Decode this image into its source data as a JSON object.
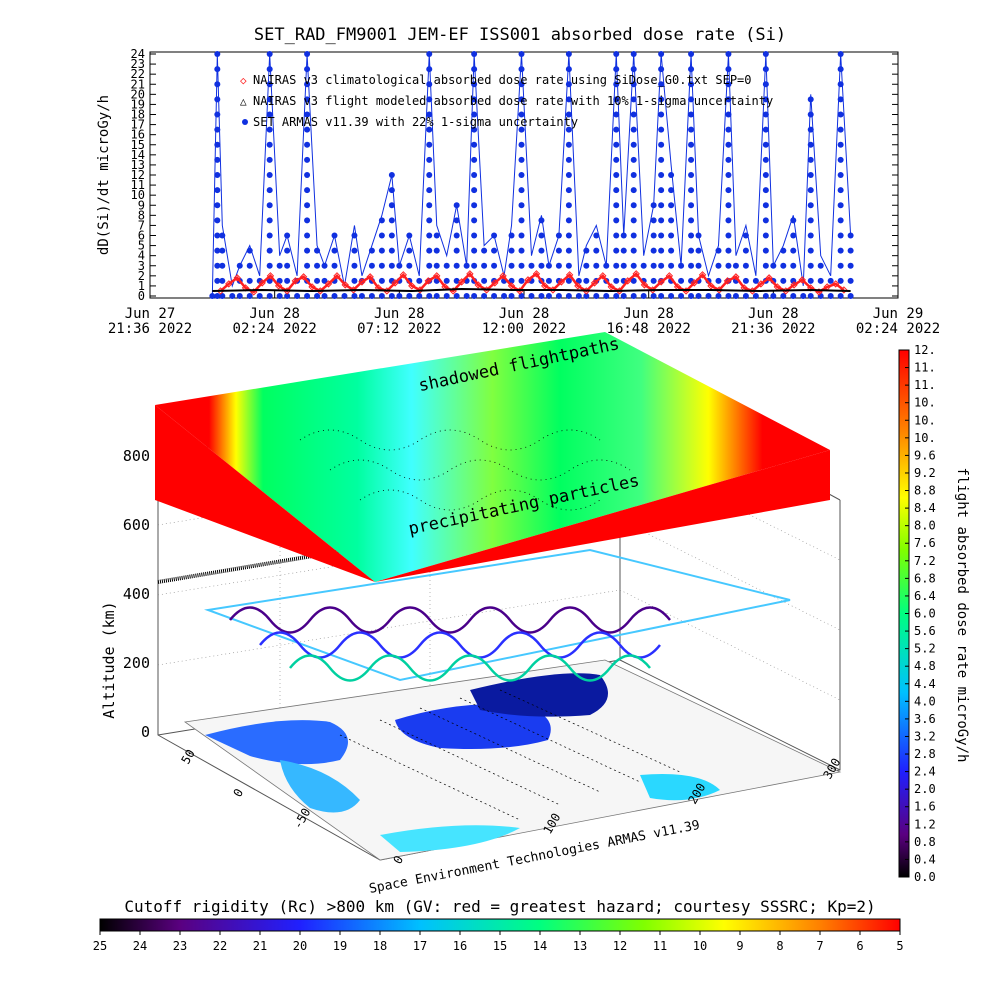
{
  "chart_data": [
    {
      "type": "line",
      "title": "SET_RAD_FM9001  JEM-EF ISS001 absorbed dose rate (Si)",
      "ylabel": "dD(Si)/dt microGy/h",
      "ylim": [
        0,
        24
      ],
      "yticks": [
        "0",
        "1",
        "2",
        "3",
        "4",
        "5",
        "6",
        "7",
        "8",
        "9",
        "10",
        "11",
        "12",
        "13",
        "14",
        "15",
        "16",
        "17",
        "18",
        "19",
        "20",
        "21",
        "22",
        "23",
        "24"
      ],
      "xticks": [
        {
          "date": "Jun 27",
          "time": "21:36 2022"
        },
        {
          "date": "Jun 28",
          "time": "02:24 2022"
        },
        {
          "date": "Jun 28",
          "time": "07:12 2022"
        },
        {
          "date": "Jun 28",
          "time": "12:00 2022"
        },
        {
          "date": "Jun 28",
          "time": "16:48 2022"
        },
        {
          "date": "Jun 28",
          "time": "21:36 2022"
        },
        {
          "date": "Jun 29",
          "time": "02:24 2022"
        }
      ],
      "legend_position": "top-left",
      "series": [
        {
          "name": "NAIRAS v3 climatological absorbed dose rate using SiDose_G0.txt SEP=0",
          "marker": "diamond",
          "color": "#ff2020",
          "x": [
            0.33,
            0.66,
            1.0,
            1.33,
            1.66,
            2.0,
            2.33,
            2.66,
            3.0,
            3.33,
            3.66,
            4.0,
            4.33,
            4.66,
            5.0,
            5.33,
            5.66,
            6.0,
            6.33,
            6.66,
            7.0,
            7.33,
            7.66,
            8.0,
            8.33,
            8.66,
            9.0,
            9.33,
            9.66,
            10.0,
            10.33,
            10.66,
            11.0,
            11.33,
            11.66,
            12.0,
            12.33,
            12.66,
            13.0,
            13.33,
            13.66,
            14.0,
            14.33,
            14.66,
            15.0,
            15.33,
            15.66,
            16.0,
            16.33,
            16.66,
            17.0,
            17.33,
            17.66,
            18.0,
            18.33,
            18.66,
            19.0,
            19.33,
            19.66,
            20.0,
            20.33,
            20.66,
            21.0,
            21.33,
            21.66,
            22.0,
            22.33,
            22.66,
            23.0,
            23.33,
            23.66,
            24.0,
            24.33,
            24.66,
            25.0,
            25.33
          ],
          "values": [
            0.5,
            1.2,
            1.8,
            0.8,
            0.4,
            1.3,
            2.0,
            1.0,
            0.5,
            1.5,
            1.9,
            0.9,
            0.5,
            1.2,
            2.0,
            1.1,
            0.6,
            1.4,
            1.9,
            0.8,
            0.5,
            1.3,
            2.1,
            1.0,
            0.6,
            1.5,
            2.0,
            0.9,
            0.5,
            1.4,
            2.2,
            1.1,
            0.6,
            1.3,
            2.0,
            1.0,
            0.5,
            1.6,
            2.2,
            1.0,
            0.6,
            1.4,
            2.1,
            1.0,
            0.5,
            1.3,
            2.0,
            0.9,
            0.5,
            1.5,
            2.2,
            1.1,
            0.6,
            1.4,
            2.0,
            0.9,
            0.5,
            1.3,
            2.1,
            1.0,
            0.6,
            1.5,
            1.9,
            0.8,
            0.5,
            1.2,
            1.8,
            0.9,
            0.5,
            1.1,
            1.6,
            0.8,
            0.4,
            0.9,
            1.2,
            0.6
          ]
        },
        {
          "name": "NAIRAS v3 flight modeled absorbed dose rate with 10% 1-sigma uncertainty",
          "marker": "triangle",
          "color": "#000000",
          "x": [
            0.0,
            2.0,
            4.0,
            6.0,
            8.0,
            10.0,
            12.0,
            14.0,
            16.0,
            18.0,
            20.0,
            22.0,
            24.0,
            25.6
          ],
          "values": [
            0.5,
            0.6,
            0.5,
            0.6,
            0.5,
            0.7,
            0.6,
            0.6,
            0.5,
            0.6,
            0.6,
            0.5,
            0.6,
            0.5
          ]
        },
        {
          "name": "SET ARMAS v11.39 with 22% 1-sigma uncertainty",
          "marker": "dot",
          "color": "#1030e0",
          "x": [
            0.0,
            0.2,
            0.4,
            0.8,
            1.1,
            1.5,
            1.9,
            2.3,
            2.7,
            3.0,
            3.4,
            3.8,
            4.2,
            4.5,
            4.9,
            5.3,
            5.7,
            6.0,
            6.4,
            6.8,
            7.2,
            7.5,
            7.9,
            8.3,
            8.7,
            9.0,
            9.4,
            9.8,
            10.2,
            10.5,
            10.9,
            11.3,
            11.7,
            12.0,
            12.4,
            12.8,
            13.2,
            13.5,
            13.9,
            14.3,
            14.7,
            15.0,
            15.4,
            15.8,
            16.2,
            16.5,
            16.9,
            17.3,
            17.7,
            18.0,
            18.4,
            18.8,
            19.2,
            19.5,
            19.9,
            20.3,
            20.7,
            21.0,
            21.4,
            21.8,
            22.2,
            22.5,
            22.9,
            23.3,
            23.7,
            24.0,
            24.4,
            24.8,
            25.2,
            25.6
          ],
          "values": [
            0,
            24,
            7,
            1,
            3,
            5,
            2,
            24,
            4,
            6,
            2,
            24,
            5,
            3,
            6,
            1,
            7,
            2,
            5,
            8,
            12,
            3,
            6,
            2,
            24,
            7,
            4,
            9,
            3,
            24,
            5,
            6,
            2,
            7,
            24,
            4,
            8,
            3,
            6,
            24,
            2,
            5,
            7,
            3,
            24,
            6,
            24,
            4,
            9,
            24,
            13,
            3,
            24,
            6,
            2,
            5,
            24,
            4,
            7,
            2,
            24,
            3,
            5,
            8,
            1,
            20,
            4,
            2,
            24,
            6
          ]
        }
      ]
    },
    {
      "type": "heatmap",
      "zlabel": "Altitude (km)",
      "zticks": [
        "0",
        "200",
        "400",
        "600",
        "800"
      ],
      "colorbar_label": "flight absorbed dose rate microGy/h",
      "colorbar_ticks": [
        "0.0",
        "0.4",
        "0.8",
        "1.2",
        "1.6",
        "2.0",
        "2.4",
        "2.8",
        "3.2",
        "3.6",
        "4.0",
        "4.4",
        "4.8",
        "5.2",
        "5.6",
        "6.0",
        "6.4",
        "6.8",
        "7.2",
        "7.6",
        "8.0",
        "8.4",
        "8.8",
        "9.2",
        "9.6",
        "10.",
        "10.",
        "10.",
        "11.",
        "11.",
        "12."
      ],
      "annotations": [
        "shadowed flightpaths",
        "precipitating particles"
      ],
      "lat_ticks": [
        "50",
        "0",
        "-50"
      ],
      "lon_ticks": [
        "0",
        "100",
        "200",
        "300"
      ],
      "credit": "Space Environment Technologies ARMAS v11.39"
    },
    {
      "type": "heatmap",
      "colorbar_title": "Cutoff rigidity (Rc) >800 km (GV: red = greatest hazard; courtesy SSSRC; Kp=2)",
      "colorbar_ticks": [
        "25",
        "24",
        "23",
        "22",
        "21",
        "20",
        "19",
        "18",
        "17",
        "16",
        "15",
        "14",
        "13",
        "12",
        "11",
        "10",
        "9",
        "8",
        "7",
        "6",
        "5"
      ]
    }
  ],
  "colors": {
    "series_blue": "#1030e0",
    "model_red": "#ff2020",
    "grid": "#333333"
  }
}
